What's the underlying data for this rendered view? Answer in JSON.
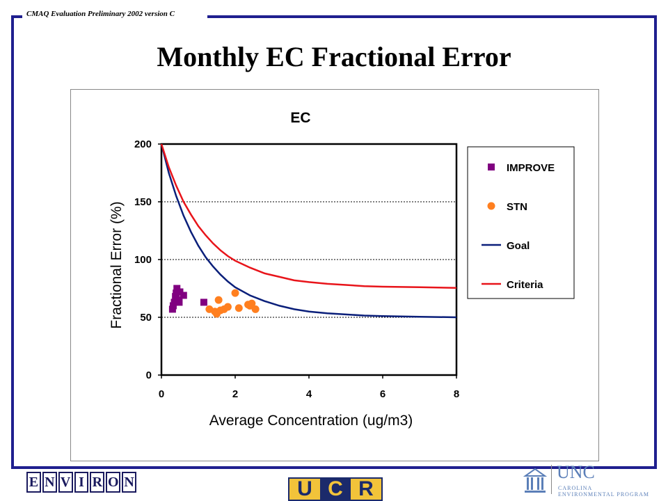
{
  "header": {
    "text": "CMAQ Evaluation Preliminary 2002 version C"
  },
  "slide": {
    "title": "Monthly EC Fractional Error"
  },
  "colors": {
    "frame": "#1f1f8f",
    "improve": "#800080",
    "stn": "#ff7f1f",
    "goal": "#0a1f7a",
    "criteria": "#e8141a"
  },
  "chart_data": {
    "type": "scatter",
    "title": "EC",
    "xlabel": "Average Concentration (ug/m3)",
    "ylabel": "Fractional Error (%)",
    "xlim": [
      0,
      8
    ],
    "ylim": [
      0,
      200
    ],
    "xticks": [
      "0",
      "2",
      "4",
      "6",
      "8"
    ],
    "yticks": [
      "0",
      "50",
      "100",
      "150",
      "200"
    ],
    "grid": "horizontal dashed",
    "legend_position": "right",
    "series": [
      {
        "name": "IMPROVE",
        "kind": "scatter",
        "marker": "square",
        "color": "#800080",
        "points": [
          [
            0.3,
            57
          ],
          [
            0.32,
            60
          ],
          [
            0.35,
            63
          ],
          [
            0.38,
            68
          ],
          [
            0.4,
            71
          ],
          [
            0.42,
            75
          ],
          [
            0.45,
            65
          ],
          [
            0.48,
            63
          ],
          [
            0.5,
            72
          ],
          [
            0.6,
            69
          ],
          [
            1.15,
            63
          ]
        ]
      },
      {
        "name": "STN",
        "kind": "scatter",
        "marker": "circle",
        "color": "#ff7f1f",
        "points": [
          [
            1.3,
            57
          ],
          [
            1.45,
            55
          ],
          [
            1.5,
            53
          ],
          [
            1.55,
            65
          ],
          [
            1.6,
            56
          ],
          [
            1.7,
            57
          ],
          [
            1.8,
            59
          ],
          [
            2.0,
            71
          ],
          [
            2.1,
            58
          ],
          [
            2.35,
            61
          ],
          [
            2.4,
            60
          ],
          [
            2.45,
            62
          ],
          [
            2.55,
            57
          ]
        ]
      },
      {
        "name": "Goal",
        "kind": "line",
        "color": "#0a1f7a",
        "x": [
          0,
          0.2,
          0.4,
          0.6,
          0.8,
          1.0,
          1.2,
          1.4,
          1.6,
          1.8,
          2.0,
          2.4,
          2.8,
          3.2,
          3.6,
          4.0,
          4.5,
          5.0,
          5.5,
          6.0,
          7.0,
          8.0
        ],
        "y": [
          200,
          175,
          155,
          138,
          124,
          112,
          102,
          94,
          87,
          81,
          76,
          69,
          64,
          60,
          57,
          55,
          53.5,
          52.5,
          51.5,
          51,
          50.5,
          50
        ]
      },
      {
        "name": "Criteria",
        "kind": "line",
        "color": "#e8141a",
        "x": [
          0,
          0.2,
          0.4,
          0.6,
          0.8,
          1.0,
          1.2,
          1.4,
          1.6,
          1.8,
          2.0,
          2.4,
          2.8,
          3.2,
          3.6,
          4.0,
          4.5,
          5.0,
          5.5,
          6.0,
          7.0,
          8.0
        ],
        "y": [
          200,
          180,
          164,
          150,
          139,
          129,
          121,
          114,
          108,
          103,
          99,
          93,
          88,
          85,
          82,
          80.5,
          79,
          78,
          77,
          76.5,
          76,
          75.5
        ]
      }
    ]
  },
  "logos": {
    "environ_letters": [
      "E",
      "N",
      "V",
      "I",
      "R",
      "O",
      "N"
    ],
    "ucr_letters": [
      "U",
      "C",
      "R"
    ],
    "unc_name": "UNC",
    "unc_sub1": "CAROLINA",
    "unc_sub2": "ENVIRONMENTAL PROGRAM"
  }
}
